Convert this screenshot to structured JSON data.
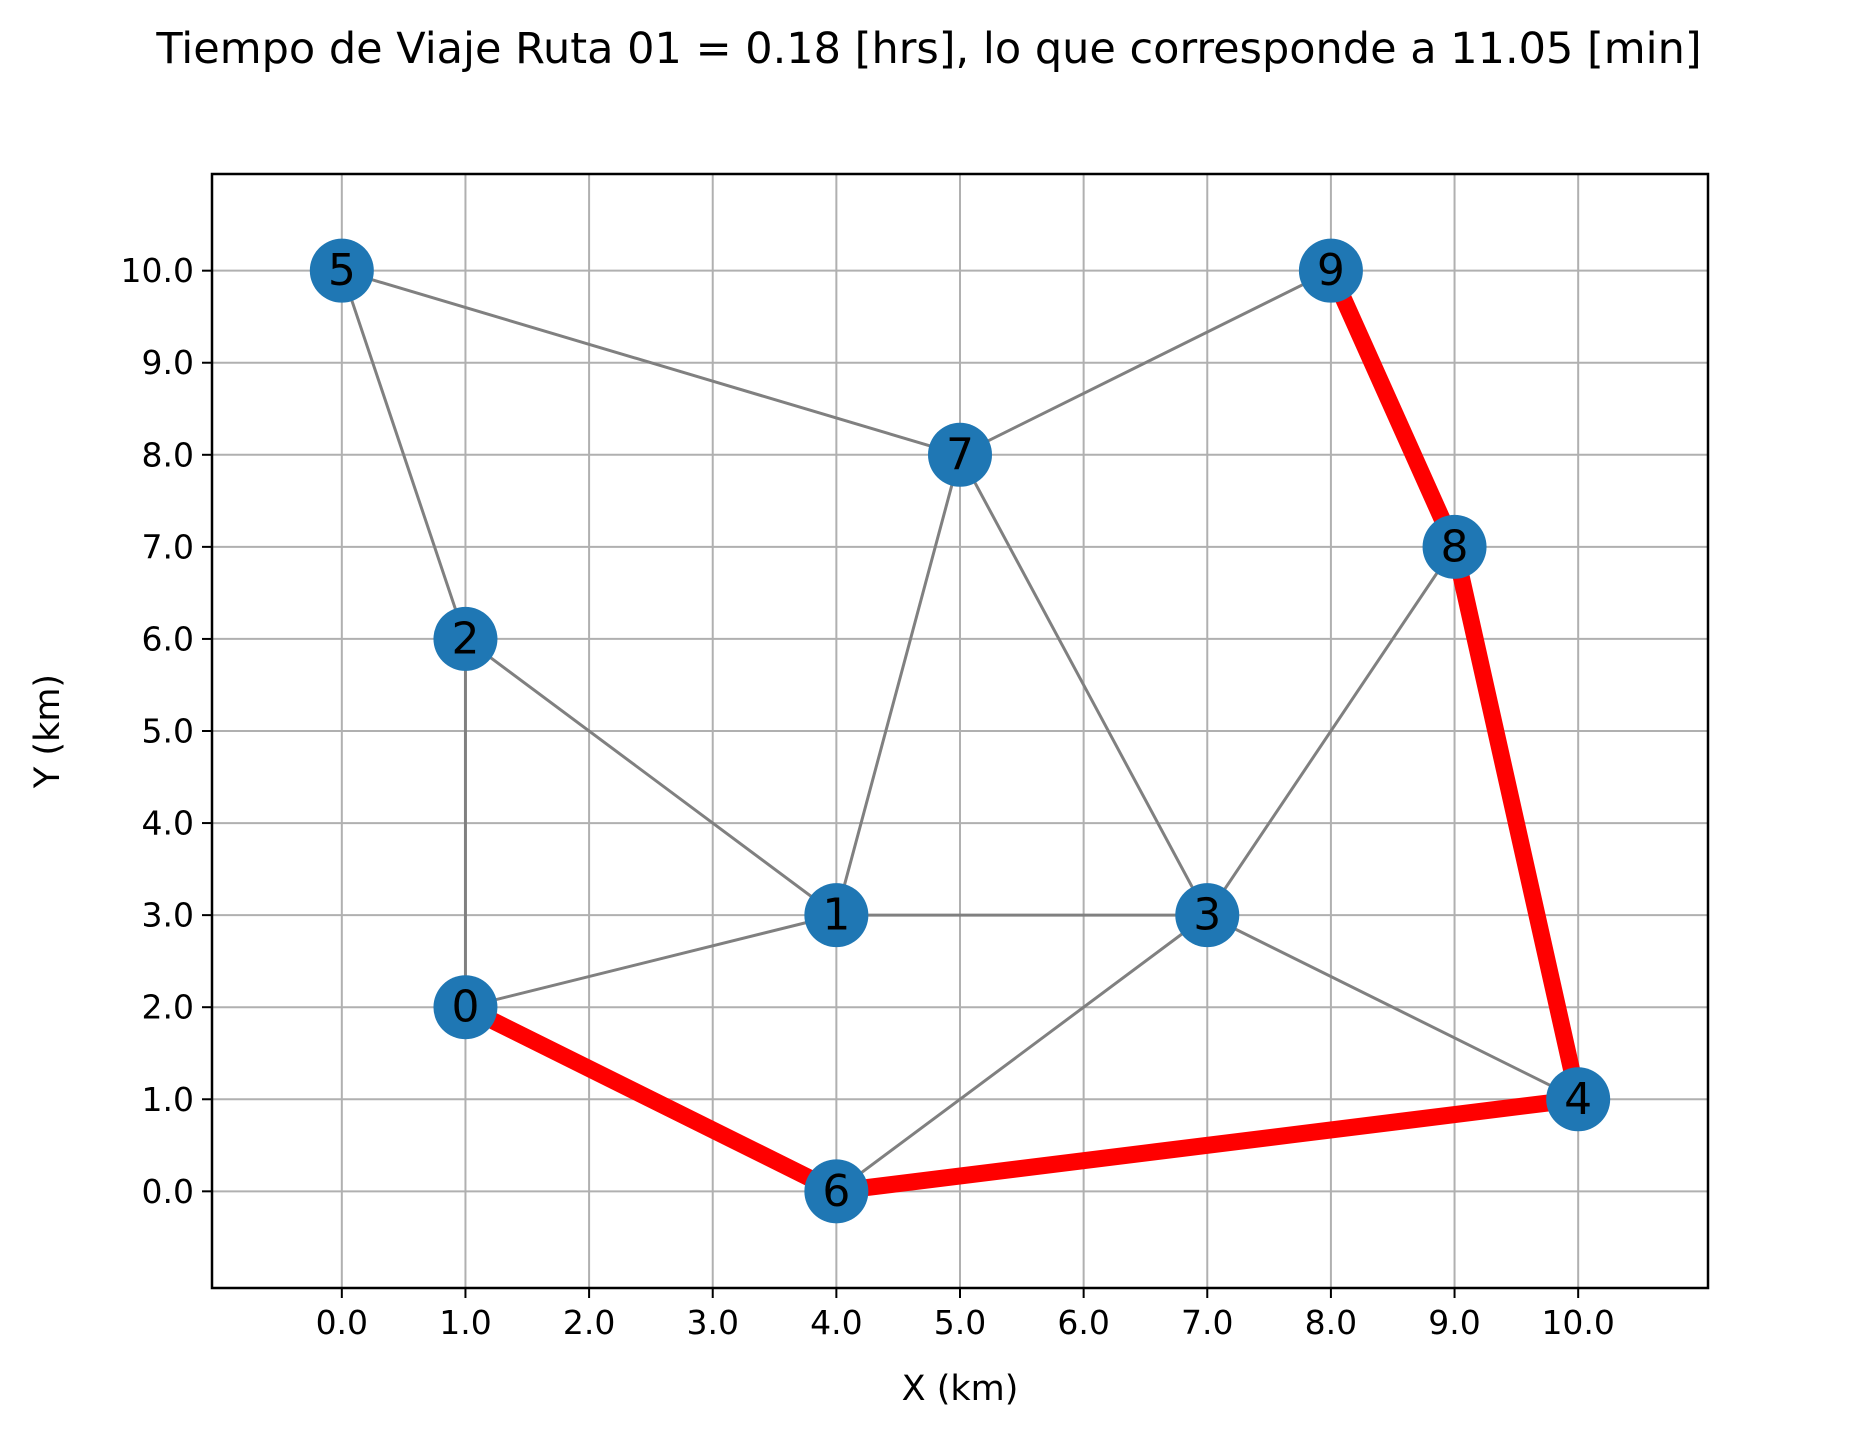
{
  "chart_data": {
    "type": "scatter",
    "title": "Tiempo de Viaje Ruta 01 = 0.18 [hrs], lo que corresponde a 11.05 [min]",
    "xlabel": "X (km)",
    "ylabel": "Y (km)",
    "xlim": [
      -1.05,
      11.05
    ],
    "ylim": [
      -1.05,
      11.05
    ],
    "grid": true,
    "xticks": [
      0,
      1,
      2,
      3,
      4,
      5,
      6,
      7,
      8,
      9,
      10
    ],
    "yticks": [
      0,
      1,
      2,
      3,
      4,
      5,
      6,
      7,
      8,
      9,
      10
    ],
    "xtick_labels": [
      "0.0",
      "1.0",
      "2.0",
      "3.0",
      "4.0",
      "5.0",
      "6.0",
      "7.0",
      "8.0",
      "9.0",
      "10.0"
    ],
    "ytick_labels": [
      "0.0",
      "1.0",
      "2.0",
      "3.0",
      "4.0",
      "5.0",
      "6.0",
      "7.0",
      "8.0",
      "9.0",
      "10.0"
    ],
    "nodes": [
      {
        "id": "0",
        "x": 1,
        "y": 2
      },
      {
        "id": "1",
        "x": 4,
        "y": 3
      },
      {
        "id": "2",
        "x": 1,
        "y": 6
      },
      {
        "id": "3",
        "x": 7,
        "y": 3
      },
      {
        "id": "4",
        "x": 10,
        "y": 1
      },
      {
        "id": "5",
        "x": 0,
        "y": 10
      },
      {
        "id": "6",
        "x": 4,
        "y": 0
      },
      {
        "id": "7",
        "x": 5,
        "y": 8
      },
      {
        "id": "8",
        "x": 9,
        "y": 7
      },
      {
        "id": "9",
        "x": 8,
        "y": 10
      }
    ],
    "edges": [
      [
        "0",
        "1"
      ],
      [
        "0",
        "2"
      ],
      [
        "1",
        "2"
      ],
      [
        "1",
        "3"
      ],
      [
        "1",
        "7"
      ],
      [
        "2",
        "5"
      ],
      [
        "5",
        "7"
      ],
      [
        "7",
        "9"
      ],
      [
        "7",
        "3"
      ],
      [
        "3",
        "8"
      ],
      [
        "3",
        "6"
      ],
      [
        "3",
        "4"
      ]
    ],
    "route": [
      "0",
      "6",
      "4",
      "8",
      "9"
    ],
    "colors": {
      "node": "#1f77b4",
      "edge": "#808080",
      "route": "#ff0000",
      "grid": "#b0b0b0"
    }
  }
}
